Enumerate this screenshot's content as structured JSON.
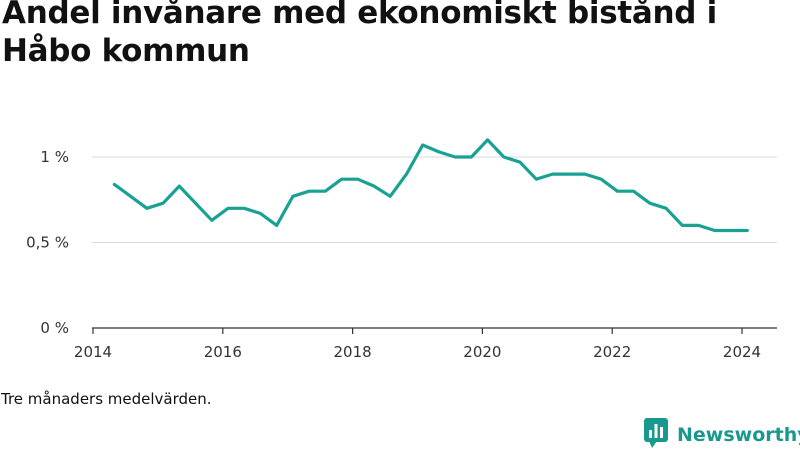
{
  "header": {
    "title": "Andel invånare med ekonomiskt bistånd i Håbo kommun"
  },
  "footer": {
    "note": "Tre månaders medelvärden.",
    "brand": "Newsworthy"
  },
  "colors": {
    "line": "#19a193",
    "grid": "#d9d9d9",
    "axis": "#333333",
    "brand": "#19998e"
  },
  "icons": {
    "brand_logo": "newsworthy-logo-icon"
  },
  "chart_data": {
    "type": "line",
    "title": "Andel invånare med ekonomiskt bistånd i Håbo kommun",
    "xlabel": "",
    "ylabel": "",
    "xlim": [
      2014,
      2024.6
    ],
    "ylim": [
      0,
      1.15
    ],
    "x_ticks": [
      {
        "value": 2014,
        "label": "2014"
      },
      {
        "value": 2016,
        "label": "2016"
      },
      {
        "value": 2018,
        "label": "2018"
      },
      {
        "value": 2020,
        "label": "2020"
      },
      {
        "value": 2022,
        "label": "2022"
      },
      {
        "value": 2024,
        "label": "2024"
      }
    ],
    "y_ticks": [
      {
        "value": 0,
        "label": "0 %"
      },
      {
        "value": 0.5,
        "label": "0,5 %"
      },
      {
        "value": 1,
        "label": "1 %"
      }
    ],
    "grid": true,
    "legend": "none",
    "series": [
      {
        "x": [
          2014.33,
          2014.58,
          2014.83,
          2015.08,
          2015.33,
          2015.58,
          2015.83,
          2016.08,
          2016.33,
          2016.58,
          2016.83,
          2017.08,
          2017.33,
          2017.58,
          2017.83,
          2018.08,
          2018.33,
          2018.58,
          2018.83,
          2019.08,
          2019.33,
          2019.58,
          2019.83,
          2020.08,
          2020.33,
          2020.58,
          2020.83,
          2021.08,
          2021.33,
          2021.58,
          2021.83,
          2022.08,
          2022.33,
          2022.58,
          2022.83,
          2023.08,
          2023.33,
          2023.58,
          2023.83,
          2024.08
        ],
        "y": [
          0.84,
          0.77,
          0.7,
          0.73,
          0.83,
          0.73,
          0.63,
          0.7,
          0.7,
          0.67,
          0.6,
          0.77,
          0.8,
          0.8,
          0.87,
          0.87,
          0.83,
          0.77,
          0.9,
          1.07,
          1.03,
          1.0,
          1.0,
          1.1,
          1.0,
          0.97,
          0.87,
          0.9,
          0.9,
          0.9,
          0.87,
          0.8,
          0.8,
          0.73,
          0.7,
          0.6,
          0.6,
          0.57,
          0.57,
          0.57
        ]
      }
    ]
  }
}
